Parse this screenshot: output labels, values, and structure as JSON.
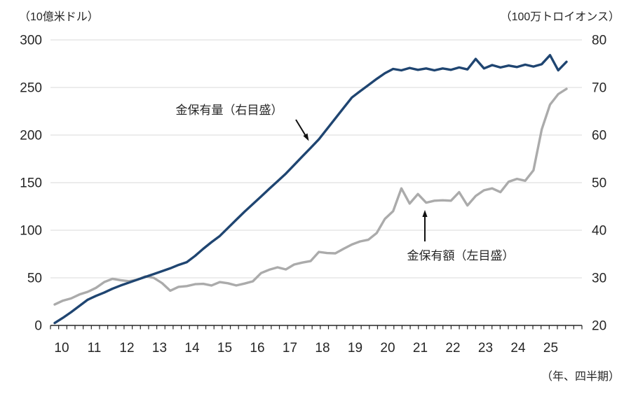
{
  "header": {
    "left_unit": "（10億米ドル）",
    "right_unit": "（100万トロイオンス）"
  },
  "footer": {
    "axis_note": "（年、四半期）"
  },
  "annotations": {
    "volume": {
      "text": "金保有量（右目盛）"
    },
    "value": {
      "text": "金保有額（左目盛）"
    }
  },
  "colors": {
    "volume_line": "#1F4571",
    "value_line": "#ABABAB",
    "gridline": "#D9D9D9",
    "axis": "#262626",
    "text": "#262626",
    "background": "#FFFFFF"
  },
  "chart_data": {
    "type": "line",
    "title": "",
    "xlabel": "（年、四半期）",
    "x_frequency": "quarterly",
    "grid": true,
    "legend_position": "none-inline-annotations",
    "left_axis": {
      "unit": "（10億米ドル）",
      "range": [
        0,
        300
      ],
      "ticks": [
        "300",
        "250",
        "200",
        "150",
        "100",
        "50",
        "0"
      ],
      "tick_values": [
        300,
        250,
        200,
        150,
        100,
        50,
        0
      ]
    },
    "right_axis": {
      "unit": "（100万トロイオンス）",
      "range": [
        20,
        80
      ],
      "ticks": [
        "80",
        "70",
        "60",
        "50",
        "40",
        "30",
        "20"
      ],
      "tick_values": [
        80,
        70,
        60,
        50,
        40,
        30,
        20
      ]
    },
    "x_tick_labels": [
      "10",
      "11",
      "12",
      "13",
      "14",
      "15",
      "16",
      "17",
      "18",
      "19",
      "20",
      "21",
      "22",
      "23",
      "24",
      "25"
    ],
    "x": [
      10,
      10.25,
      10.5,
      10.75,
      11,
      11.25,
      11.5,
      11.75,
      12,
      12.25,
      12.5,
      12.75,
      13,
      13.25,
      13.5,
      13.75,
      14,
      14.25,
      14.5,
      14.75,
      15,
      15.25,
      15.5,
      15.75,
      16,
      16.25,
      16.5,
      16.75,
      17,
      17.25,
      17.5,
      17.75,
      18,
      18.25,
      18.5,
      18.75,
      19,
      19.25,
      19.5,
      19.75,
      20,
      20.25,
      20.5,
      20.75,
      21,
      21.25,
      21.5,
      21.75,
      22,
      22.25,
      22.5,
      22.75,
      23,
      23.25,
      23.5,
      23.75,
      24,
      24.25,
      24.5,
      24.75,
      25,
      25.25,
      25.5
    ],
    "series": [
      {
        "name": "金保有額（左目盛）",
        "axis": "left",
        "color": "#ABABAB",
        "width": 3.4,
        "values": [
          22.0,
          26.0,
          28.4,
          32.5,
          35.3,
          39.5,
          45.5,
          49.0,
          47.5,
          46.5,
          48.0,
          51.5,
          50.0,
          44.5,
          36.5,
          40.5,
          41.3,
          43.3,
          43.7,
          42.0,
          45.5,
          44.3,
          42.0,
          44.0,
          46.3,
          55.0,
          58.5,
          61.0,
          58.8,
          64.0,
          66.0,
          67.6,
          77.2,
          76.0,
          75.7,
          80.5,
          85.0,
          88.2,
          90.0,
          97.0,
          112.0,
          120.0,
          144.0,
          128.0,
          138.0,
          129.0,
          131.0,
          131.5,
          131.0,
          140.0,
          126.0,
          136.0,
          142.0,
          144.0,
          140.0,
          151.0,
          154.0,
          152.0,
          163.0,
          206.0,
          232.0,
          243.0,
          248.5
        ]
      },
      {
        "name": "金保有量（右目盛）",
        "axis": "right",
        "color": "#1F4571",
        "width": 3.4,
        "values": [
          20.5,
          21.6,
          22.8,
          24.1,
          25.4,
          26.2,
          26.9,
          27.7,
          28.4,
          29.0,
          29.6,
          30.2,
          30.8,
          31.4,
          32.0,
          32.7,
          33.3,
          34.6,
          36.1,
          37.5,
          38.8,
          40.5,
          42.2,
          43.9,
          45.5,
          47.1,
          48.7,
          50.3,
          51.9,
          53.7,
          55.5,
          57.3,
          59.1,
          61.3,
          63.5,
          65.7,
          67.9,
          69.2,
          70.5,
          71.8,
          73.0,
          73.9,
          73.6,
          74.1,
          73.7,
          74.0,
          73.6,
          74.0,
          73.7,
          74.2,
          73.8,
          76.0,
          74.0,
          74.7,
          74.2,
          74.6,
          74.3,
          74.8,
          74.4,
          74.9,
          76.8,
          73.6,
          75.4
        ]
      }
    ]
  }
}
